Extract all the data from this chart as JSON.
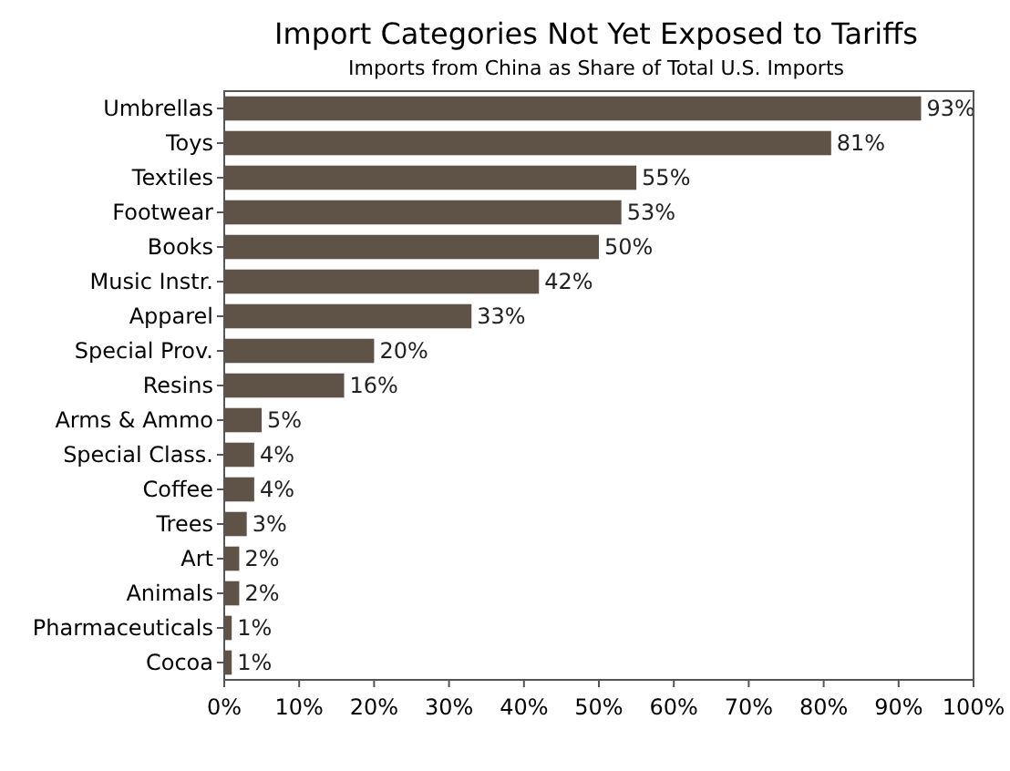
{
  "chart_data": {
    "type": "bar",
    "orientation": "horizontal",
    "title": "Import Categories Not Yet Exposed to Tariffs",
    "subtitle": "Imports from China as Share of Total U.S. Imports",
    "categories": [
      "Umbrellas",
      "Toys",
      "Textiles",
      "Footwear",
      "Books",
      "Music Instr.",
      "Apparel",
      "Special Prov.",
      "Resins",
      "Arms & Ammo",
      "Special Class.",
      "Coffee",
      "Trees",
      "Art",
      "Animals",
      "Pharmaceuticals",
      "Cocoa"
    ],
    "values": [
      93,
      81,
      55,
      53,
      50,
      42,
      33,
      20,
      16,
      5,
      4,
      4,
      3,
      2,
      2,
      1,
      1
    ],
    "value_labels": [
      "93%",
      "81%",
      "55%",
      "53%",
      "50%",
      "42%",
      "33%",
      "20%",
      "16%",
      "5%",
      "4%",
      "4%",
      "3%",
      "2%",
      "2%",
      "1%",
      "1%"
    ],
    "color": "#5f5247",
    "xlim": [
      0,
      100
    ],
    "xticks": [
      {
        "value": 0,
        "label": "0%"
      },
      {
        "value": 10,
        "label": "10%"
      },
      {
        "value": 20,
        "label": "20%"
      },
      {
        "value": 30,
        "label": "30%"
      },
      {
        "value": 40,
        "label": "40%"
      },
      {
        "value": 50,
        "label": "50%"
      },
      {
        "value": 60,
        "label": "60%"
      },
      {
        "value": 70,
        "label": "70%"
      },
      {
        "value": 80,
        "label": "80%"
      },
      {
        "value": 90,
        "label": "90%"
      },
      {
        "value": 100,
        "label": "100%"
      }
    ],
    "grid": false
  }
}
